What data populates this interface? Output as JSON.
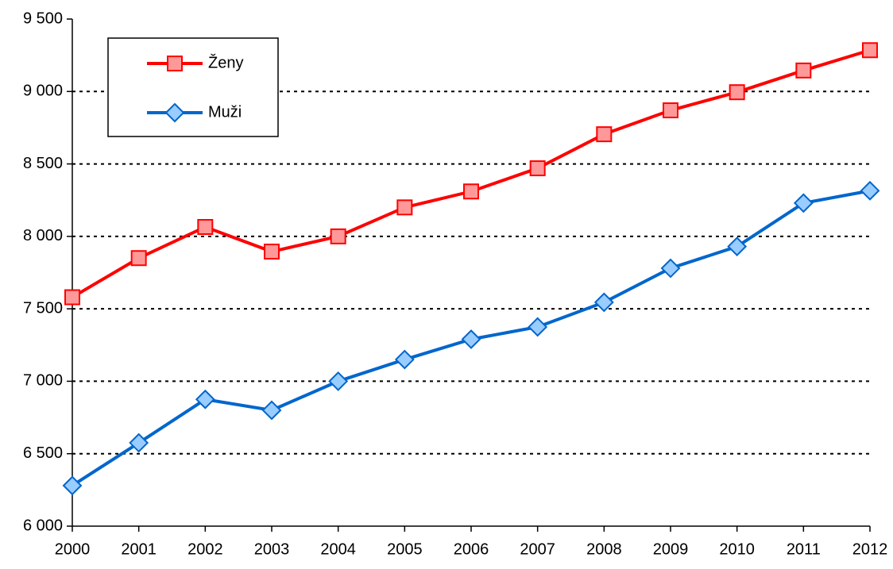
{
  "chart_data": {
    "type": "line",
    "categories": [
      "2000",
      "2001",
      "2002",
      "2003",
      "2004",
      "2005",
      "2006",
      "2007",
      "2008",
      "2009",
      "2010",
      "2011",
      "2012"
    ],
    "series": [
      {
        "name": "Ženy",
        "color": "#ff0000",
        "marker_fill": "#ff9999",
        "marker": "square",
        "values": [
          7580,
          7850,
          8065,
          7895,
          8000,
          8200,
          8310,
          8470,
          8705,
          8870,
          8995,
          9145,
          9285
        ]
      },
      {
        "name": "Muži",
        "color": "#0066cc",
        "marker_fill": "#99ccff",
        "marker": "diamond",
        "values": [
          6280,
          6575,
          6875,
          6800,
          7000,
          7150,
          7290,
          7375,
          7545,
          7780,
          7930,
          8230,
          8315
        ]
      }
    ],
    "ylim": [
      6000,
      9500
    ],
    "yticks": [
      {
        "value": 6000,
        "label": "6 000"
      },
      {
        "value": 6500,
        "label": "6 500"
      },
      {
        "value": 7000,
        "label": "7 000"
      },
      {
        "value": 7500,
        "label": "7 500"
      },
      {
        "value": 8000,
        "label": "8 000"
      },
      {
        "value": 8500,
        "label": "8 500"
      },
      {
        "value": 9000,
        "label": "9 000"
      },
      {
        "value": 9500,
        "label": "9 500"
      }
    ],
    "grid": true,
    "legend": "upper left"
  }
}
